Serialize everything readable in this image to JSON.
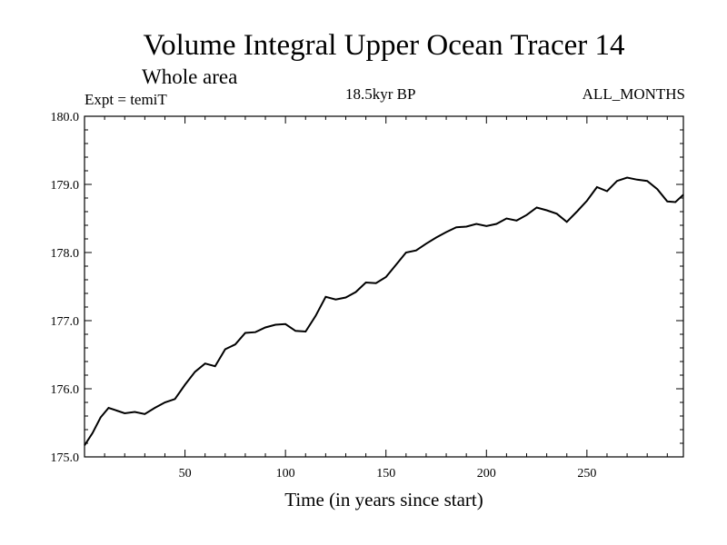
{
  "header": {
    "title": "Volume Integral Upper Ocean Tracer 14",
    "subtitle": "Whole area",
    "expt": "Expt = temiT",
    "period": "18.5kyr BP",
    "months": "ALL_MONTHS"
  },
  "chart_data": {
    "type": "line",
    "title": "Volume Integral Upper Ocean Tracer 14",
    "subtitle": "Whole area",
    "xlabel": "Time (in years since start)",
    "ylabel": "",
    "xlim": [
      0,
      298
    ],
    "ylim": [
      175.0,
      180.0
    ],
    "xticks": [
      50,
      100,
      150,
      200,
      250
    ],
    "xtick_labels": [
      "50",
      "100",
      "150",
      "200",
      "250"
    ],
    "yticks": [
      175.0,
      176.0,
      177.0,
      178.0,
      179.0,
      180.0
    ],
    "ytick_labels": [
      "175.0",
      "176.0",
      "177.0",
      "178.0",
      "179.0",
      "180.0"
    ],
    "grid": false,
    "line_color": "#000000",
    "series": [
      {
        "x": [
          0,
          4,
          8,
          12,
          16,
          20,
          25,
          30,
          35,
          40,
          45,
          50,
          55,
          60,
          65,
          70,
          75,
          80,
          85,
          90,
          95,
          100,
          105,
          110,
          115,
          120,
          125,
          130,
          135,
          140,
          145,
          150,
          155,
          160,
          165,
          170,
          175,
          180,
          185,
          190,
          195,
          200,
          205,
          210,
          215,
          220,
          225,
          230,
          235,
          240,
          245,
          250,
          255,
          260,
          265,
          270,
          275,
          280,
          285,
          290,
          294,
          298
        ],
        "y": [
          175.17,
          175.35,
          175.58,
          175.72,
          175.68,
          175.64,
          175.66,
          175.63,
          175.72,
          175.8,
          175.85,
          176.06,
          176.25,
          176.37,
          176.33,
          176.58,
          176.65,
          176.82,
          176.83,
          176.9,
          176.94,
          176.95,
          176.85,
          176.84,
          177.07,
          177.35,
          177.31,
          177.34,
          177.42,
          177.56,
          177.55,
          177.64,
          177.82,
          178.0,
          178.03,
          178.13,
          178.22,
          178.3,
          178.37,
          178.38,
          178.42,
          178.39,
          178.42,
          178.5,
          178.47,
          178.55,
          178.66,
          178.62,
          178.57,
          178.45,
          178.6,
          178.76,
          178.96,
          178.9,
          179.05,
          179.1,
          179.07,
          179.05,
          178.93,
          178.75,
          178.74,
          178.85
        ]
      }
    ]
  }
}
